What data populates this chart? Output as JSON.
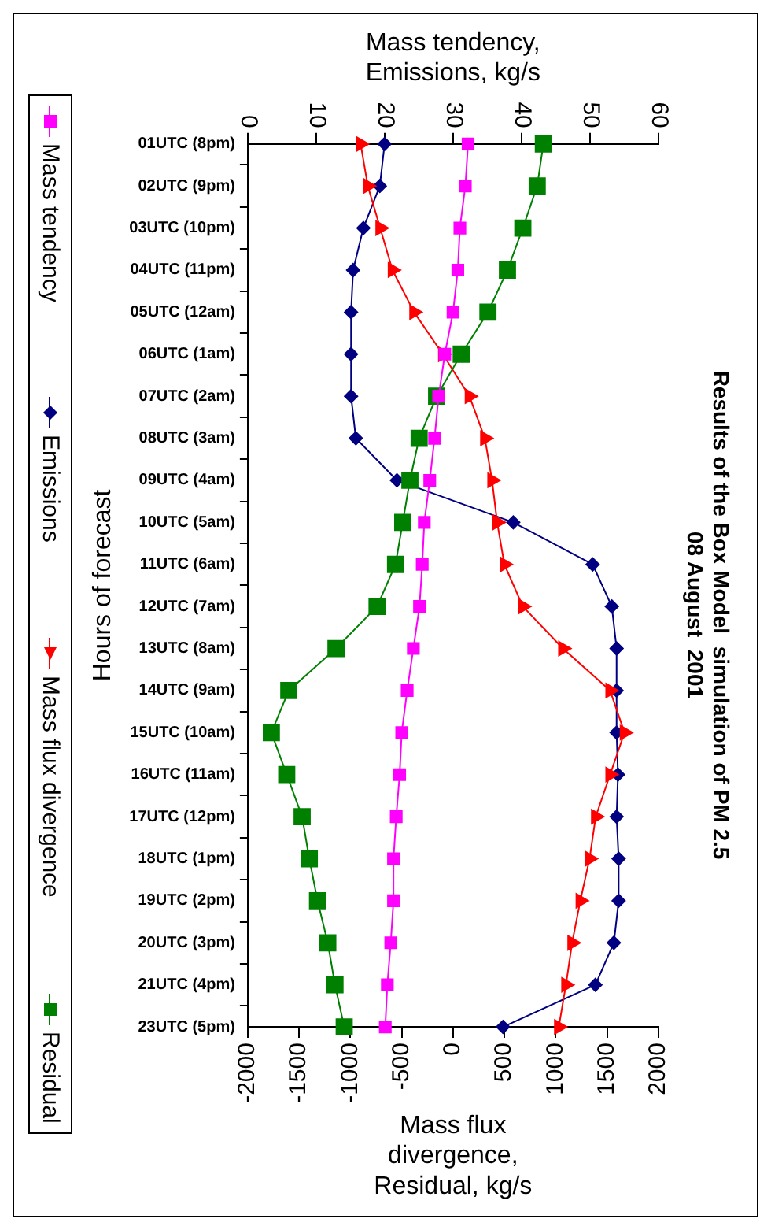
{
  "chart_data": {
    "type": "line",
    "orientation": "horizontal",
    "title": [
      "Results of the Box Model  simulation of PM 2.5",
      "08 August  2001"
    ],
    "ylabel": "Hours of forecast",
    "x2label": [
      "Mass tendency,",
      "Emissions, kg/s"
    ],
    "xlabel": [
      "Mass flux",
      "divergence,",
      "Residual, kg/s"
    ],
    "categories": [
      "01UTC (8pm)",
      "02UTC (9pm)",
      "03UTC (10pm)",
      "04UTC (11pm)",
      "05UTC (12am)",
      "06UTC (1am)",
      "07UTC (2am)",
      "08UTC (3am)",
      "09UTC (4am)",
      "10UTC (5am)",
      "11UTC (6am)",
      "12UTC (7am)",
      "13UTC (8am)",
      "14UTC (9am)",
      "15UTC (10am)",
      "16UTC (11am)",
      "17UTC (12pm)",
      "18UTC (1pm)",
      "19UTC (2pm)",
      "20UTC (3pm)",
      "21UTC (4pm)",
      "23UTC (5pm)"
    ],
    "series": [
      {
        "name": "Mass tendency",
        "color": "#ff00ff",
        "marker": "square",
        "axis": "x2",
        "values": [
          32.2,
          31.8,
          31.0,
          30.7,
          30.0,
          28.8,
          27.9,
          27.3,
          26.6,
          25.8,
          25.5,
          25.1,
          24.2,
          23.3,
          22.5,
          22.2,
          21.7,
          21.3,
          21.3,
          20.9,
          20.4,
          20.1
        ]
      },
      {
        "name": "Emissions",
        "color": "#000080",
        "marker": "diamond",
        "axis": "x2",
        "values": [
          20.0,
          19.3,
          16.9,
          15.4,
          15.1,
          15.1,
          15.1,
          15.8,
          21.8,
          38.8,
          50.4,
          53.2,
          53.9,
          53.9,
          53.9,
          54.1,
          53.9,
          54.2,
          54.2,
          53.5,
          50.8,
          37.3
        ]
      },
      {
        "name": "Mass flux divergence",
        "color": "#ff0000",
        "marker": "triangle",
        "values": [
          -900,
          -830,
          -710,
          -590,
          -380,
          -100,
          160,
          310,
          380,
          430,
          500,
          680,
          1070,
          1530,
          1670,
          1530,
          1390,
          1330,
          1240,
          1160,
          1100,
          1030
        ]
      },
      {
        "name": "Residual",
        "color": "#008000",
        "marker": "square",
        "values": [
          880,
          820,
          680,
          530,
          340,
          80,
          -160,
          -330,
          -420,
          -490,
          -560,
          -740,
          -1140,
          -1600,
          -1770,
          -1620,
          -1470,
          -1400,
          -1320,
          -1220,
          -1150,
          -1060
        ]
      }
    ],
    "x2lim": [
      0,
      60
    ],
    "x2ticks": [
      0,
      10,
      20,
      30,
      40,
      50,
      60
    ],
    "xlim": [
      -2000,
      2000
    ],
    "xticks": [
      -2000,
      -1500,
      -1000,
      -500,
      0,
      500,
      1000,
      1500,
      2000
    ],
    "legend": "left"
  }
}
